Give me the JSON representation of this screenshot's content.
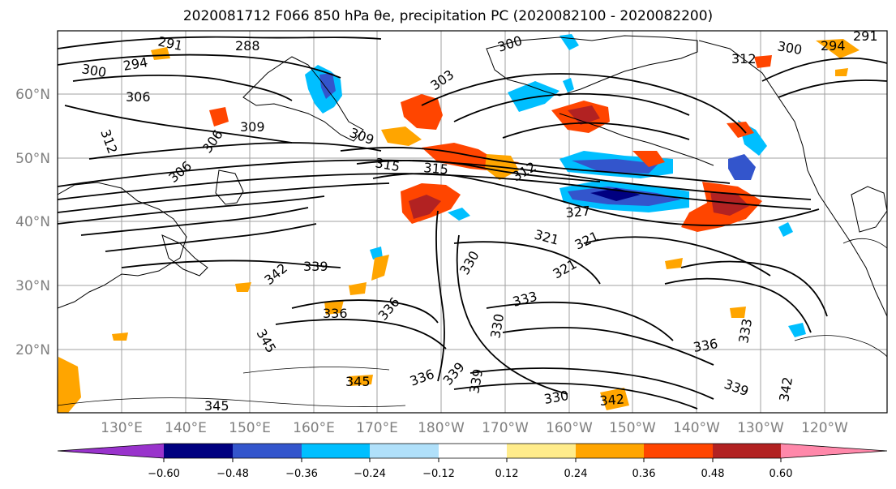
{
  "title": "2020081712 F066 850 hPa θe, precipitation PC (2020082100 - 2020082200)",
  "map": {
    "lat_labels": [
      "60°N",
      "50°N",
      "40°N",
      "30°N",
      "20°N"
    ],
    "lon_labels": [
      "130°E",
      "140°E",
      "150°E",
      "160°E",
      "170°E",
      "180°W",
      "170°W",
      "160°W",
      "150°W",
      "140°W",
      "130°W",
      "120°W"
    ],
    "contour_labels": [
      "291",
      "288",
      "300",
      "294",
      "300",
      "306",
      "303",
      "309",
      "312",
      "306",
      "309",
      "306",
      "315",
      "315",
      "312",
      "327",
      "321",
      "321",
      "321",
      "339",
      "330",
      "342",
      "336",
      "333",
      "336",
      "330",
      "339",
      "345",
      "345",
      "336",
      "339",
      "330",
      "342",
      "336",
      "339",
      "333",
      "342",
      "345",
      "312",
      "300",
      "291",
      "294"
    ]
  },
  "colorbar": {
    "ticks": [
      "−0.60",
      "−0.48",
      "−0.36",
      "−0.24",
      "−0.12",
      "0.12",
      "0.24",
      "0.36",
      "0.48",
      "0.60"
    ],
    "colors": [
      "#9933cc",
      "#000080",
      "#3355cc",
      "#00bfff",
      "#b0e0fa",
      "#ffffff",
      "#ffec8b",
      "#ffa500",
      "#ff4500",
      "#b22222",
      "#ff88aa"
    ]
  },
  "shading_colors": {
    "neg_strong": "#000080",
    "neg_mid": "#3355cc",
    "neg_light": "#00bfff",
    "neg_pale": "#b0e0fa",
    "pos_pale": "#ffec8b",
    "pos_light": "#ffa500",
    "pos_mid": "#ff4500",
    "pos_strong": "#b22222"
  }
}
